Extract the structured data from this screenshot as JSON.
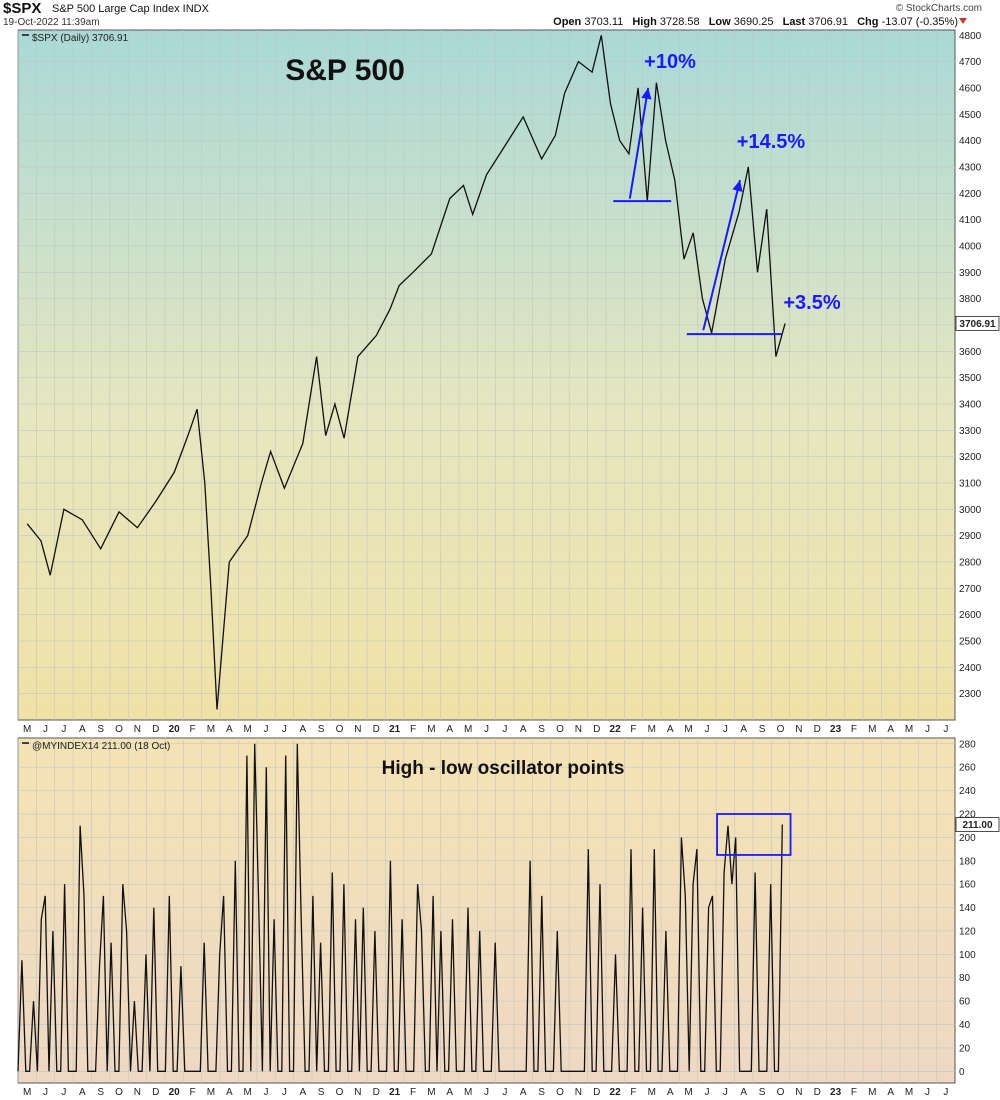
{
  "header": {
    "symbol": "$SPX",
    "description": "S&P 500 Large Cap Index  INDX",
    "date": "19-Oct-2022 11:39am",
    "brand": "© StockCharts.com",
    "open_label": "Open",
    "open": "3703.11",
    "high_label": "High",
    "high": "3728.58",
    "low_label": "Low",
    "low": "3690.25",
    "last_label": "Last",
    "last": "3706.91",
    "chg_label": "Chg",
    "chg": "-13.07 (-0.35%)"
  },
  "colors": {
    "line": "#111111",
    "annotation": "#1a1aff",
    "grid": "#bfc7c3"
  },
  "chart_data": [
    {
      "type": "line",
      "legend": "$SPX (Daily) 3706.91",
      "title": "S&P 500",
      "last_value_label": "3706.91",
      "ylim": [
        2200,
        4820
      ],
      "y_ticks": [
        2300,
        2400,
        2500,
        2600,
        2700,
        2800,
        2900,
        3000,
        3100,
        3200,
        3300,
        3400,
        3500,
        3600,
        3700,
        3800,
        3900,
        4000,
        4100,
        4200,
        4300,
        4400,
        4500,
        4600,
        4700,
        4800
      ],
      "x_tick_labels": [
        "M",
        "J",
        "J",
        "A",
        "S",
        "O",
        "N",
        "D",
        "20",
        "F",
        "M",
        "A",
        "M",
        "J",
        "J",
        "A",
        "S",
        "O",
        "N",
        "D",
        "21",
        "F",
        "M",
        "A",
        "M",
        "J",
        "J",
        "A",
        "S",
        "O",
        "N",
        "D",
        "22",
        "F",
        "M",
        "A",
        "M",
        "J",
        "J",
        "A",
        "S",
        "O",
        "N",
        "D",
        "23",
        "F",
        "M",
        "A",
        "M",
        "J",
        "J"
      ],
      "x_range": [
        "2019-05",
        "2023-07"
      ],
      "series": [
        {
          "x": [
            "2019-05",
            "2019-06",
            "2019-06",
            "2019-07",
            "2019-08",
            "2019-09",
            "2019-10",
            "2019-11",
            "2019-12",
            "2020-01",
            "2020-02",
            "2020-02",
            "2020-03",
            "2020-03",
            "2020-03",
            "2020-04",
            "2020-05",
            "2020-06",
            "2020-06",
            "2020-07",
            "2020-08",
            "2020-09",
            "2020-09",
            "2020-10",
            "2020-10",
            "2020-11",
            "2020-12",
            "2021-01",
            "2021-01",
            "2021-02",
            "2021-03",
            "2021-04",
            "2021-05",
            "2021-05",
            "2021-06",
            "2021-07",
            "2021-08",
            "2021-09",
            "2021-10",
            "2021-10",
            "2021-11",
            "2021-12",
            "2021-12",
            "2022-01",
            "2022-01",
            "2022-02",
            "2022-02",
            "2022-03",
            "2022-03",
            "2022-04",
            "2022-04",
            "2022-05",
            "2022-05",
            "2022-06",
            "2022-06",
            "2022-07",
            "2022-08",
            "2022-08",
            "2022-09",
            "2022-09",
            "2022-10",
            "2022-10"
          ],
          "values": [
            2945,
            2880,
            2750,
            3000,
            2960,
            2850,
            2990,
            2930,
            3030,
            3140,
            3280,
            3380,
            3100,
            2700,
            2240,
            2800,
            2900,
            3100,
            3220,
            3080,
            3250,
            3580,
            3280,
            3400,
            3270,
            3580,
            3660,
            3760,
            3850,
            3900,
            3970,
            4180,
            4230,
            4120,
            4270,
            4380,
            4490,
            4330,
            4420,
            4580,
            4700,
            4660,
            4800,
            4540,
            4400,
            4350,
            4600,
            4170,
            4620,
            4400,
            4250,
            3950,
            4050,
            3800,
            3670,
            3950,
            4130,
            4300,
            3900,
            4140,
            3580,
            3706
          ]
        }
      ],
      "annotations": [
        "+10%",
        "+14.5%",
        "+3.5%"
      ],
      "support_lines": [
        {
          "x": [
            "2022-01",
            "2022-04"
          ],
          "y": 4170
        },
        {
          "x": [
            "2022-05",
            "2022-10"
          ],
          "y": 3665
        }
      ],
      "arrows": [
        {
          "x": [
            "2022-02",
            "2022-03"
          ],
          "y": [
            4180,
            4600
          ]
        },
        {
          "x": [
            "2022-06",
            "2022-08"
          ],
          "y": [
            3680,
            4250
          ]
        }
      ],
      "grid": true
    },
    {
      "type": "line",
      "legend": "@MYINDEX14 211.00 (18 Oct)",
      "title": "High - low oscillator points",
      "last_value_label": "211.00",
      "ylim": [
        -10,
        285
      ],
      "y_ticks": [
        0,
        20,
        40,
        60,
        80,
        100,
        120,
        140,
        160,
        180,
        200,
        220,
        240,
        260,
        280
      ],
      "x_tick_labels": [
        "M",
        "J",
        "J",
        "A",
        "S",
        "O",
        "N",
        "D",
        "20",
        "F",
        "M",
        "A",
        "M",
        "J",
        "J",
        "A",
        "S",
        "O",
        "N",
        "D",
        "21",
        "F",
        "M",
        "A",
        "M",
        "J",
        "J",
        "A",
        "S",
        "O",
        "N",
        "D",
        "22",
        "F",
        "M",
        "A",
        "M",
        "J",
        "J",
        "A",
        "S",
        "O",
        "N",
        "D",
        "23",
        "F",
        "M",
        "A",
        "M",
        "J",
        "J"
      ],
      "series": [
        {
          "values": [
            0,
            95,
            0,
            0,
            60,
            0,
            130,
            150,
            0,
            120,
            0,
            0,
            160,
            0,
            0,
            0,
            210,
            150,
            0,
            0,
            0,
            90,
            150,
            0,
            110,
            0,
            0,
            160,
            120,
            0,
            60,
            0,
            0,
            100,
            0,
            140,
            0,
            0,
            0,
            150,
            0,
            0,
            90,
            0,
            0,
            0,
            0,
            0,
            110,
            0,
            0,
            0,
            100,
            150,
            0,
            0,
            180,
            0,
            0,
            270,
            0,
            280,
            150,
            0,
            260,
            0,
            130,
            0,
            0,
            270,
            0,
            0,
            280,
            130,
            0,
            0,
            150,
            0,
            110,
            0,
            0,
            170,
            0,
            0,
            160,
            0,
            0,
            130,
            0,
            140,
            0,
            0,
            120,
            0,
            0,
            0,
            180,
            0,
            0,
            130,
            0,
            0,
            0,
            160,
            120,
            0,
            0,
            150,
            0,
            120,
            0,
            0,
            130,
            0,
            0,
            0,
            140,
            0,
            0,
            120,
            0,
            0,
            0,
            110,
            0,
            0,
            0,
            0,
            0,
            0,
            0,
            0,
            180,
            0,
            0,
            150,
            0,
            0,
            0,
            120,
            0,
            0,
            0,
            0,
            0,
            0,
            0,
            190,
            0,
            0,
            160,
            0,
            0,
            0,
            100,
            0,
            0,
            0,
            190,
            0,
            0,
            140,
            0,
            0,
            190,
            0,
            0,
            120,
            0,
            0,
            0,
            200,
            150,
            0,
            160,
            190,
            0,
            0,
            140,
            150,
            0,
            0,
            170,
            210,
            160,
            200,
            0,
            0,
            0,
            0,
            170,
            0,
            0,
            0,
            160,
            0,
            0,
            211
          ]
        }
      ],
      "annotations": [],
      "highlight_box": {
        "x": [
          "2022-07",
          "2022-10"
        ],
        "y": [
          185,
          220
        ]
      },
      "grid": true
    }
  ]
}
